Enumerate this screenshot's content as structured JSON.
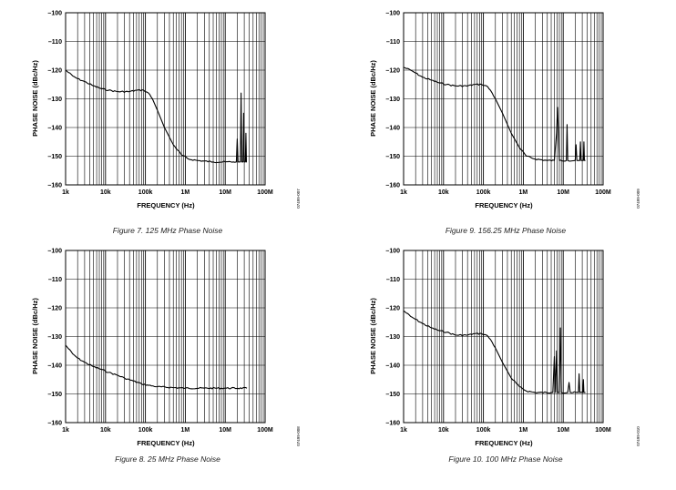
{
  "chart_data": [
    {
      "type": "line",
      "caption": "Figure 7. 125 MHz Phase Noise",
      "xlabel": "FREQUENCY (Hz)",
      "ylabel": "PHASE NOISE (dBc/Hz)",
      "side_id": "07499-007",
      "x_scale": "log",
      "xlim": [
        1000,
        100000000
      ],
      "ylim": [
        -160,
        -100
      ],
      "x_ticks": [
        1000,
        10000,
        100000,
        1000000,
        10000000,
        100000000
      ],
      "x_tick_labels": [
        "1k",
        "10k",
        "100k",
        "1M",
        "10M",
        "100M"
      ],
      "y_ticks": [
        -100,
        -110,
        -120,
        -130,
        -140,
        -150,
        -160
      ],
      "y_tick_labels": [
        "–100",
        "–110",
        "–120",
        "–130",
        "–140",
        "–150",
        "–160"
      ],
      "grid": true,
      "series": [
        {
          "points": [
            [
              1000,
              -120
            ],
            [
              1500,
              -122
            ],
            [
              2000,
              -123
            ],
            [
              3000,
              -124
            ],
            [
              5000,
              -125.5
            ],
            [
              8000,
              -126.5
            ],
            [
              12000,
              -127
            ],
            [
              20000,
              -127.5
            ],
            [
              40000,
              -127.5
            ],
            [
              60000,
              -127
            ],
            [
              90000,
              -127
            ],
            [
              120000,
              -128
            ],
            [
              150000,
              -130
            ],
            [
              200000,
              -134
            ],
            [
              300000,
              -140
            ],
            [
              500000,
              -146
            ],
            [
              800000,
              -149.5
            ],
            [
              1200000,
              -151
            ],
            [
              2000000,
              -151.5
            ],
            [
              5000000,
              -152
            ],
            [
              10000000,
              -152
            ],
            [
              16000000,
              -152
            ],
            [
              19000000,
              -152
            ],
            [
              20000000,
              -144
            ],
            [
              21000000,
              -152
            ],
            [
              24000000,
              -152
            ],
            [
              25000000,
              -128
            ],
            [
              26000000,
              -152
            ],
            [
              28000000,
              -152
            ],
            [
              29000000,
              -135
            ],
            [
              30000000,
              -152
            ],
            [
              32000000,
              -152
            ],
            [
              33000000,
              -142
            ],
            [
              34000000,
              -152
            ],
            [
              35000000,
              -152
            ]
          ]
        }
      ]
    },
    {
      "type": "line",
      "caption": "Figure 8. 25 MHz Phase Noise",
      "xlabel": "FREQUENCY (Hz)",
      "ylabel": "PHASE NOISE (dBc/Hz)",
      "side_id": "07499-008",
      "x_scale": "log",
      "xlim": [
        1000,
        100000000
      ],
      "ylim": [
        -160,
        -100
      ],
      "x_ticks": [
        1000,
        10000,
        100000,
        1000000,
        10000000,
        100000000
      ],
      "x_tick_labels": [
        "1k",
        "10k",
        "100k",
        "1M",
        "10M",
        "100M"
      ],
      "y_ticks": [
        -100,
        -110,
        -120,
        -130,
        -140,
        -150,
        -160
      ],
      "y_tick_labels": [
        "–100",
        "–110",
        "–120",
        "–130",
        "–140",
        "–150",
        "–160"
      ],
      "grid": true,
      "series": [
        {
          "points": [
            [
              1000,
              -133
            ],
            [
              1500,
              -136
            ],
            [
              2000,
              -137.5
            ],
            [
              3000,
              -139
            ],
            [
              5000,
              -140.5
            ],
            [
              8000,
              -141.5
            ],
            [
              12000,
              -142.5
            ],
            [
              20000,
              -143.5
            ],
            [
              30000,
              -144.5
            ],
            [
              50000,
              -145.5
            ],
            [
              80000,
              -146.5
            ],
            [
              120000,
              -147
            ],
            [
              200000,
              -147.5
            ],
            [
              500000,
              -147.8
            ],
            [
              1000000,
              -148
            ],
            [
              3000000,
              -148
            ],
            [
              10000000,
              -148
            ],
            [
              35000000,
              -148
            ]
          ]
        }
      ]
    },
    {
      "type": "line",
      "caption": "Figure 9. 156.25 MHz Phase Noise",
      "xlabel": "FREQUENCY (Hz)",
      "ylabel": "PHASE NOISE (dBc/Hz)",
      "side_id": "07499-009",
      "x_scale": "log",
      "xlim": [
        1000,
        100000000
      ],
      "ylim": [
        -160,
        -100
      ],
      "x_ticks": [
        1000,
        10000,
        100000,
        1000000,
        10000000,
        100000000
      ],
      "x_tick_labels": [
        "1k",
        "10k",
        "100k",
        "1M",
        "10M",
        "100M"
      ],
      "y_ticks": [
        -100,
        -110,
        -120,
        -130,
        -140,
        -150,
        -160
      ],
      "y_tick_labels": [
        "–100",
        "–110",
        "–120",
        "–130",
        "–140",
        "–150",
        "–160"
      ],
      "grid": true,
      "series": [
        {
          "points": [
            [
              1000,
              -119
            ],
            [
              1500,
              -120
            ],
            [
              2000,
              -121
            ],
            [
              3000,
              -122.5
            ],
            [
              5000,
              -123.5
            ],
            [
              8000,
              -124.5
            ],
            [
              12000,
              -125
            ],
            [
              20000,
              -125.5
            ],
            [
              40000,
              -125.5
            ],
            [
              60000,
              -125
            ],
            [
              90000,
              -125
            ],
            [
              120000,
              -125.5
            ],
            [
              150000,
              -127
            ],
            [
              200000,
              -130
            ],
            [
              300000,
              -135
            ],
            [
              500000,
              -142
            ],
            [
              800000,
              -147
            ],
            [
              1200000,
              -150
            ],
            [
              2000000,
              -151
            ],
            [
              4000000,
              -151.5
            ],
            [
              6000000,
              -151.5
            ],
            [
              6800000,
              -142
            ],
            [
              7200000,
              -133
            ],
            [
              7600000,
              -142
            ],
            [
              8000000,
              -151.5
            ],
            [
              12000000,
              -151.5
            ],
            [
              12500000,
              -139
            ],
            [
              13000000,
              -151.5
            ],
            [
              20000000,
              -151.5
            ],
            [
              21000000,
              -146
            ],
            [
              22000000,
              -151.5
            ],
            [
              26000000,
              -151.5
            ],
            [
              27000000,
              -145
            ],
            [
              28000000,
              -151.5
            ],
            [
              32000000,
              -151.5
            ],
            [
              33000000,
              -145
            ],
            [
              34000000,
              -151.5
            ],
            [
              36000000,
              -151.5
            ]
          ]
        }
      ]
    },
    {
      "type": "line",
      "caption": "Figure 10. 100 MHz Phase Noise",
      "xlabel": "FREQUENCY (Hz)",
      "ylabel": "PHASE NOISE (dBc/Hz)",
      "side_id": "07499-010",
      "x_scale": "log",
      "xlim": [
        1000,
        100000000
      ],
      "ylim": [
        -160,
        -100
      ],
      "x_ticks": [
        1000,
        10000,
        100000,
        1000000,
        10000000,
        100000000
      ],
      "x_tick_labels": [
        "1k",
        "10k",
        "100k",
        "1M",
        "10M",
        "100M"
      ],
      "y_ticks": [
        -100,
        -110,
        -120,
        -130,
        -140,
        -150,
        -160
      ],
      "y_tick_labels": [
        "–100",
        "–110",
        "–120",
        "–130",
        "–140",
        "–150",
        "–160"
      ],
      "grid": true,
      "series": [
        {
          "points": [
            [
              1000,
              -121
            ],
            [
              1500,
              -123
            ],
            [
              2000,
              -124
            ],
            [
              3000,
              -125.5
            ],
            [
              5000,
              -127
            ],
            [
              8000,
              -128
            ],
            [
              12000,
              -128.5
            ],
            [
              20000,
              -129.5
            ],
            [
              40000,
              -129.5
            ],
            [
              60000,
              -129
            ],
            [
              90000,
              -129
            ],
            [
              120000,
              -129.5
            ],
            [
              150000,
              -131
            ],
            [
              200000,
              -134
            ],
            [
              300000,
              -139
            ],
            [
              500000,
              -144.5
            ],
            [
              800000,
              -147.5
            ],
            [
              1200000,
              -149
            ],
            [
              2000000,
              -149.5
            ],
            [
              5000000,
              -149.5
            ],
            [
              5500000,
              -149.5
            ],
            [
              6000000,
              -137
            ],
            [
              6400000,
              -149.5
            ],
            [
              6800000,
              -135
            ],
            [
              7200000,
              -149.5
            ],
            [
              8000000,
              -149.5
            ],
            [
              8500000,
              -127
            ],
            [
              9000000,
              -149.5
            ],
            [
              13000000,
              -149.5
            ],
            [
              14000000,
              -146
            ],
            [
              15000000,
              -149.5
            ],
            [
              24000000,
              -149.5
            ],
            [
              25000000,
              -143
            ],
            [
              26000000,
              -149.5
            ],
            [
              31000000,
              -149.5
            ],
            [
              32000000,
              -145
            ],
            [
              33000000,
              -149.5
            ],
            [
              36000000,
              -149.5
            ]
          ]
        }
      ]
    }
  ]
}
